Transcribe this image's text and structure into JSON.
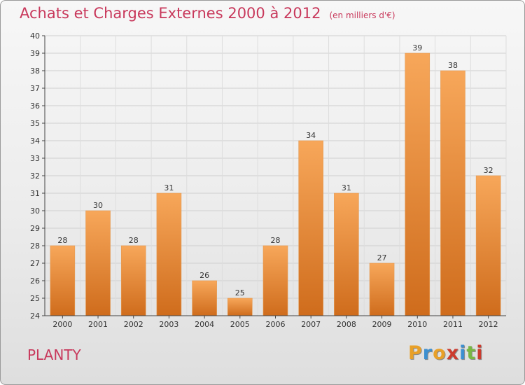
{
  "title": "Achats et Charges Externes 2000 à 2012",
  "unit": "(en milliers d'€)",
  "commune": "PLANTY",
  "logo": [
    "P",
    "r",
    "o",
    "x",
    "i",
    "t",
    "i"
  ],
  "logo_colors": [
    "#e8a028",
    "#3c8fd0",
    "#e8a028",
    "#cc3b2e",
    "#3c8fd0",
    "#79b743",
    "#cc3b2e"
  ],
  "colors": {
    "bar_light": "#f7a75a",
    "bar_dark": "#cf6c1c",
    "title": "#c8385b"
  },
  "chart_data": {
    "type": "bar",
    "categories": [
      "2000",
      "2001",
      "2002",
      "2003",
      "2004",
      "2005",
      "2006",
      "2007",
      "2008",
      "2009",
      "2010",
      "2011",
      "2012"
    ],
    "values": [
      28,
      30,
      28,
      31,
      26,
      25,
      28,
      34,
      31,
      27,
      39,
      38,
      32
    ],
    "title": "Achats et Charges Externes 2000 à 2012",
    "ylim": [
      24,
      40
    ],
    "yticks": [
      24,
      25,
      26,
      27,
      28,
      29,
      30,
      31,
      32,
      33,
      34,
      35,
      36,
      37,
      38,
      39,
      40
    ],
    "grid": true,
    "data_labels": true
  }
}
